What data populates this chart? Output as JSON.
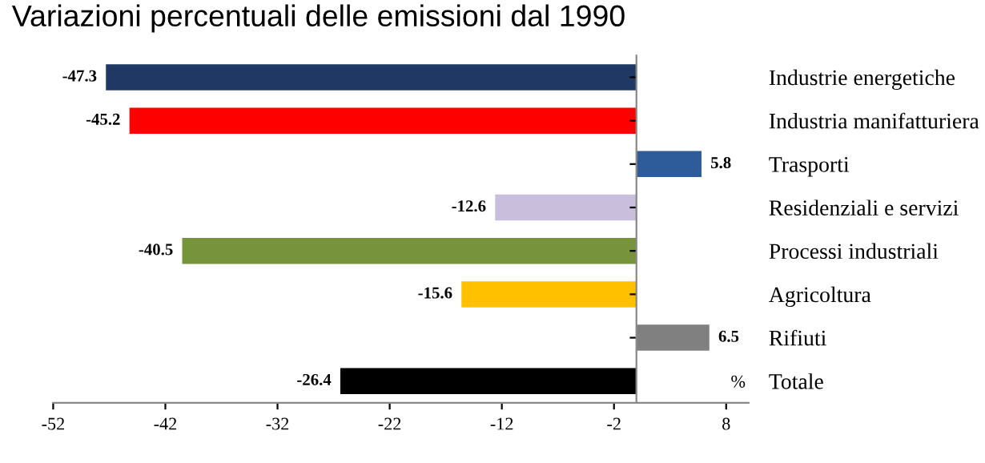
{
  "chart_data": {
    "type": "bar",
    "orientation": "horizontal",
    "title": "Variazioni percentuali delle emissioni dal 1990",
    "xlabel": "%",
    "categories": [
      "Industrie energetiche",
      "Industria manifatturiera",
      "Trasporti",
      "Residenziali e servizi",
      "Processi industriali",
      "Agricoltura",
      "Rifiuti",
      "Totale"
    ],
    "values": [
      -47.3,
      -45.2,
      5.8,
      -12.6,
      -40.5,
      -15.6,
      6.5,
      -26.4
    ],
    "colors": [
      "#1f3864",
      "#ff0000",
      "#2e5c9a",
      "#c9bedb",
      "#77933c",
      "#ffc000",
      "#808080",
      "#000000"
    ],
    "xlim": [
      -52,
      10
    ],
    "xticks": [
      -52,
      -42,
      -32,
      -22,
      -12,
      -2,
      8
    ],
    "data_labels": true,
    "grid": false,
    "legend": false
  }
}
